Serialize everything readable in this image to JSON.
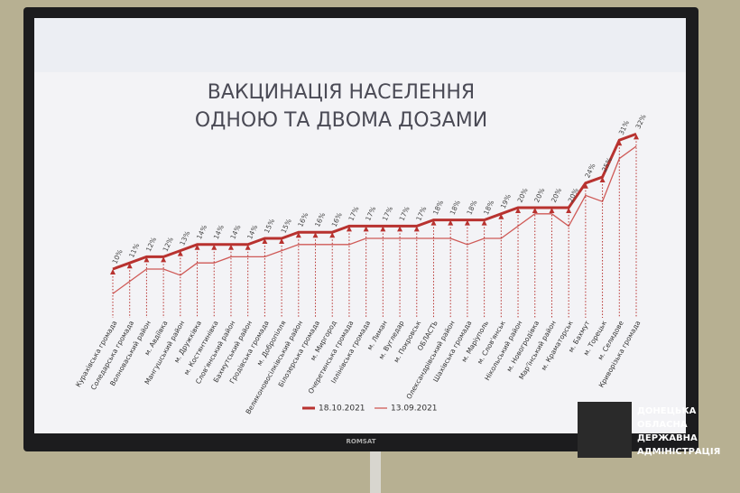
{
  "chart_data": {
    "type": "line",
    "title": [
      "ВАКЦИНАЦІЯ НАСЕЛЕННЯ",
      "ОДНОЮ ТА ДВОМА ДОЗАМИ"
    ],
    "categories": [
      "Курахівська громада",
      "Соледарська громада",
      "Волноваський район",
      "м. Авдіївка",
      "Мангушський район",
      "м. Дружківка",
      "м. Костянтинівка",
      "Слов'янський район",
      "Бахмутський район",
      "Гродівська громада",
      "м. Добропілля",
      "Великоновосілківський район",
      "Білозерська громада",
      "м. Миргород",
      "Очеретинська громада",
      "Іллінівська громада",
      "м. Лиман",
      "м. Вугледар",
      "м. Покровськ",
      "ОБЛАСТЬ",
      "Олександрівський район",
      "Шахівська громада",
      "м. Маріуполь",
      "м. Слов'янськ",
      "Нікольський район",
      "м. Новогродівка",
      "Мар'їнський район",
      "м. Краматорськ",
      "м. Бахмут",
      "м. Торецьк",
      "м. Селидове",
      "Криворізька громада"
    ],
    "series": [
      {
        "name": "18.10.2021",
        "color": "#b8322f",
        "values": [
          10,
          11,
          12,
          12,
          13,
          14,
          14,
          14,
          14,
          15,
          15,
          16,
          16,
          16,
          17,
          17,
          17,
          17,
          17,
          18,
          18,
          18,
          18,
          19,
          20,
          20,
          20,
          20,
          24,
          25,
          31,
          32
        ],
        "value_labels": [
          "10%",
          "11%",
          "12%",
          "12%",
          "13%",
          "14%",
          "14%",
          "14%",
          "14%",
          "15%",
          "15%",
          "16%",
          "16%",
          "16%",
          "17%",
          "17%",
          "17%",
          "17%",
          "17%",
          "18%",
          "18%",
          "18%",
          "18%",
          "19%",
          "20%",
          "20%",
          "20%",
          "20%",
          "24%",
          "25%",
          "31%",
          "32%"
        ]
      },
      {
        "name": "13.09.2021",
        "color": "#cf5a57",
        "values": [
          6,
          8,
          10,
          10,
          9,
          11,
          11,
          12,
          12,
          12,
          13,
          14,
          14,
          14,
          14,
          15,
          15,
          15,
          15,
          15,
          15,
          14,
          15,
          15,
          17,
          19,
          19,
          17,
          22,
          21,
          28,
          30
        ]
      }
    ],
    "brand": "ROMSAT",
    "logo": [
      "ДОНЕЦЬКА",
      "ОБЛАСНА",
      "ДЕРЖАВНА",
      "АДМІНІСТРАЦІЯ"
    ]
  }
}
